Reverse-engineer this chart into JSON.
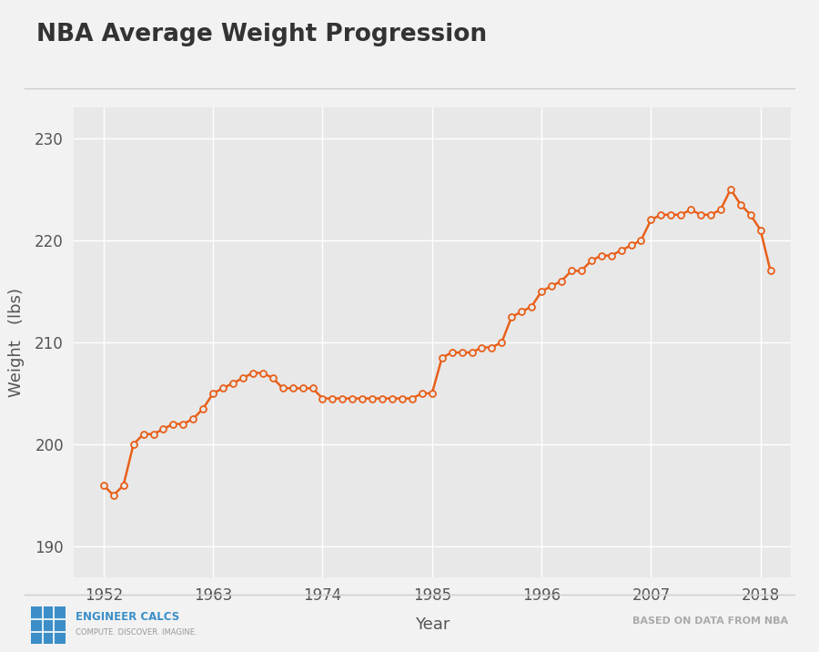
{
  "title": "NBA Average Weight Progression",
  "xlabel": "Year",
  "ylabel": "Weight   (lbs)",
  "background_color": "#f2f2f2",
  "plot_bg_color": "#e8e8e8",
  "line_color": "#E8601A",
  "marker_face": "#e8e8e8",
  "years": [
    1952,
    1953,
    1954,
    1955,
    1956,
    1957,
    1958,
    1959,
    1960,
    1961,
    1962,
    1963,
    1964,
    1965,
    1966,
    1967,
    1968,
    1969,
    1970,
    1971,
    1972,
    1973,
    1974,
    1975,
    1976,
    1977,
    1978,
    1979,
    1980,
    1981,
    1982,
    1983,
    1984,
    1985,
    1986,
    1987,
    1988,
    1989,
    1990,
    1991,
    1992,
    1993,
    1994,
    1995,
    1996,
    1997,
    1998,
    1999,
    2000,
    2001,
    2002,
    2003,
    2004,
    2005,
    2006,
    2007,
    2008,
    2009,
    2010,
    2011,
    2012,
    2013,
    2014,
    2015,
    2016,
    2017,
    2018,
    2019
  ],
  "weights": [
    196.0,
    195.0,
    196.0,
    200.0,
    201.0,
    201.0,
    201.5,
    202.0,
    202.0,
    202.5,
    203.5,
    205.0,
    205.5,
    206.0,
    206.5,
    207.0,
    207.0,
    206.5,
    205.5,
    205.5,
    205.5,
    205.5,
    204.5,
    204.5,
    204.5,
    204.5,
    204.5,
    204.5,
    204.5,
    204.5,
    204.5,
    204.5,
    205.0,
    205.0,
    208.5,
    209.0,
    209.0,
    209.0,
    209.5,
    209.5,
    210.0,
    212.5,
    213.0,
    213.5,
    215.0,
    215.5,
    216.0,
    217.0,
    217.0,
    218.0,
    218.5,
    218.5,
    219.0,
    219.5,
    220.0,
    222.0,
    222.5,
    222.5,
    222.5,
    223.0,
    222.5,
    222.5,
    223.0,
    225.0,
    223.5,
    222.5,
    221.0,
    217.0
  ],
  "xticks": [
    1952,
    1963,
    1974,
    1985,
    1996,
    2007,
    2018
  ],
  "yticks": [
    190,
    200,
    210,
    220,
    230
  ],
  "xlim": [
    1949,
    2021
  ],
  "ylim": [
    187,
    233
  ],
  "title_fontsize": 19,
  "axis_label_fontsize": 13,
  "tick_fontsize": 12,
  "footer_text_right": "BASED ON DATA FROM NBA",
  "grid_color": "#ffffff",
  "tick_color": "#555555",
  "title_color": "#333333"
}
